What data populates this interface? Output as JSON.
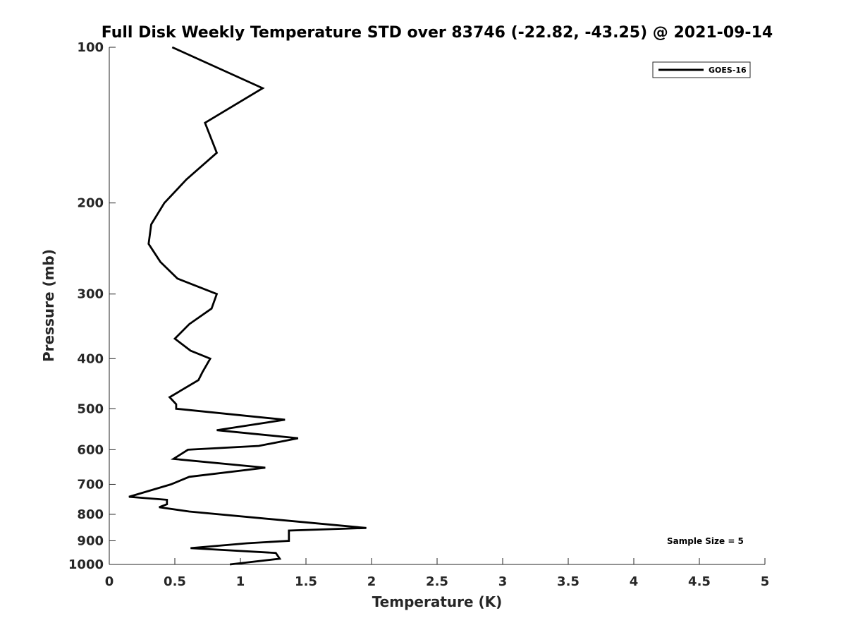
{
  "chart_data": {
    "type": "line",
    "title": "Full Disk Weekly Temperature STD over 83746 (-22.82, -43.25) @ 2021-09-14",
    "xlabel": "Temperature (K)",
    "ylabel": "Pressure (mb)",
    "xlim": [
      0,
      5
    ],
    "ylim": [
      100,
      1000
    ],
    "y_scale": "log",
    "y_reversed": true,
    "xticks": [
      "0",
      "0.5",
      "1",
      "1.5",
      "2",
      "2.5",
      "3",
      "3.5",
      "4",
      "4.5",
      "5"
    ],
    "yticks": [
      "100",
      "200",
      "300",
      "400",
      "500",
      "600",
      "700",
      "800",
      "900",
      "1000"
    ],
    "legend_position": "top-right",
    "annotation": "Sample Size = 5",
    "series": [
      {
        "name": "GOES-16",
        "color": "#000000",
        "points": [
          [
            0.48,
            100
          ],
          [
            1.17,
            120
          ],
          [
            0.73,
            140
          ],
          [
            0.82,
            160
          ],
          [
            0.59,
            180
          ],
          [
            0.42,
            200
          ],
          [
            0.32,
            220
          ],
          [
            0.3,
            240
          ],
          [
            0.39,
            260
          ],
          [
            0.52,
            280
          ],
          [
            0.82,
            300
          ],
          [
            0.78,
            320
          ],
          [
            0.61,
            343
          ],
          [
            0.5,
            366
          ],
          [
            0.62,
            386
          ],
          [
            0.77,
            400
          ],
          [
            0.71,
            425
          ],
          [
            0.68,
            440
          ],
          [
            0.46,
            475
          ],
          [
            0.51,
            490
          ],
          [
            0.51,
            500
          ],
          [
            1.34,
            525
          ],
          [
            0.82,
            550
          ],
          [
            1.44,
            570
          ],
          [
            1.14,
            590
          ],
          [
            0.6,
            600
          ],
          [
            0.49,
            625
          ],
          [
            1.19,
            650
          ],
          [
            0.61,
            677
          ],
          [
            0.47,
            700
          ],
          [
            0.15,
            740
          ],
          [
            0.44,
            750
          ],
          [
            0.44,
            765
          ],
          [
            0.38,
            775
          ],
          [
            0.61,
            790
          ],
          [
            1.96,
            850
          ],
          [
            1.37,
            860
          ],
          [
            1.37,
            900
          ],
          [
            1.05,
            910
          ],
          [
            0.62,
            930
          ],
          [
            1.27,
            950
          ],
          [
            1.3,
            975
          ],
          [
            0.92,
            1000
          ]
        ]
      }
    ]
  }
}
